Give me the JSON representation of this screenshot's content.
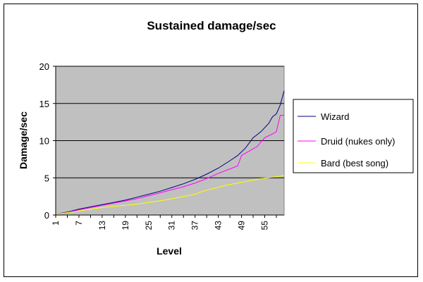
{
  "chart_data": {
    "type": "line",
    "title": "Sustained damage/sec",
    "xlabel": "Level",
    "ylabel": "Damage/sec",
    "ylim": [
      0,
      20
    ],
    "yticks": [
      "0",
      "5",
      "10",
      "15",
      "20"
    ],
    "xlim": [
      1,
      60
    ],
    "xticks": [
      "1",
      "7",
      "13",
      "19",
      "25",
      "31",
      "37",
      "43",
      "49",
      "55"
    ],
    "grid": true,
    "legend_position": "right",
    "plot_background": "#c0c0c0",
    "series": [
      {
        "name": "Wizard",
        "color": "#000080",
        "points": [
          [
            1,
            0.1
          ],
          [
            4,
            0.4
          ],
          [
            7,
            0.8
          ],
          [
            10,
            1.1
          ],
          [
            13,
            1.4
          ],
          [
            16,
            1.7
          ],
          [
            19,
            2.0
          ],
          [
            22,
            2.4
          ],
          [
            25,
            2.8
          ],
          [
            28,
            3.2
          ],
          [
            31,
            3.7
          ],
          [
            34,
            4.2
          ],
          [
            37,
            4.8
          ],
          [
            40,
            5.5
          ],
          [
            43,
            6.3
          ],
          [
            46,
            7.3
          ],
          [
            48,
            8.0
          ],
          [
            50,
            9.0
          ],
          [
            52,
            10.4
          ],
          [
            54,
            11.2
          ],
          [
            56,
            12.3
          ],
          [
            57,
            13.2
          ],
          [
            58,
            13.6
          ],
          [
            59,
            14.8
          ],
          [
            60,
            16.7
          ]
        ]
      },
      {
        "name": "Druid (nukes only)",
        "color": "#ff00ff",
        "points": [
          [
            1,
            0.1
          ],
          [
            4,
            0.3
          ],
          [
            7,
            0.7
          ],
          [
            10,
            1.0
          ],
          [
            13,
            1.3
          ],
          [
            16,
            1.6
          ],
          [
            19,
            1.9
          ],
          [
            22,
            2.2
          ],
          [
            25,
            2.6
          ],
          [
            28,
            3.0
          ],
          [
            31,
            3.4
          ],
          [
            34,
            3.8
          ],
          [
            37,
            4.3
          ],
          [
            40,
            4.9
          ],
          [
            43,
            5.6
          ],
          [
            46,
            6.2
          ],
          [
            48,
            6.6
          ],
          [
            49,
            8.0
          ],
          [
            51,
            8.6
          ],
          [
            53,
            9.2
          ],
          [
            55,
            10.4
          ],
          [
            57,
            10.9
          ],
          [
            58,
            11.2
          ],
          [
            59,
            13.4
          ],
          [
            60,
            13.4
          ]
        ]
      },
      {
        "name": "Bard (best song)",
        "color": "#ffff00",
        "points": [
          [
            1,
            0.1
          ],
          [
            5,
            0.4
          ],
          [
            9,
            0.7
          ],
          [
            13,
            1.0
          ],
          [
            17,
            1.2
          ],
          [
            21,
            1.4
          ],
          [
            25,
            1.7
          ],
          [
            29,
            2.0
          ],
          [
            33,
            2.4
          ],
          [
            37,
            2.8
          ],
          [
            39,
            3.2
          ],
          [
            42,
            3.6
          ],
          [
            45,
            4.0
          ],
          [
            48,
            4.3
          ],
          [
            51,
            4.6
          ],
          [
            54,
            4.9
          ],
          [
            57,
            5.1
          ],
          [
            60,
            5.3
          ]
        ]
      }
    ]
  }
}
